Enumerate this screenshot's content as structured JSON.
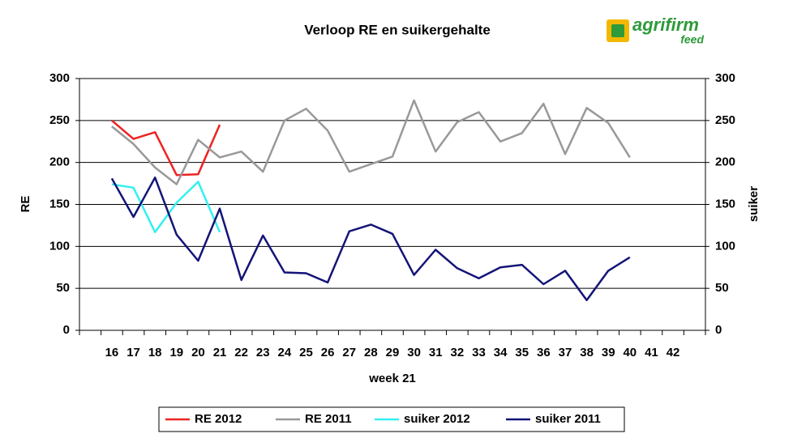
{
  "chart_data": {
    "type": "line",
    "title": "Verloop RE en suikergehalte",
    "logo": {
      "name": "agrifirm",
      "sub": "feed"
    },
    "xlabel": "week 21",
    "ylabel": "RE",
    "y2label": "suiker",
    "categories": [
      null,
      "16",
      "17",
      "18",
      "19",
      "20",
      "21",
      "22",
      "23",
      "24",
      "25",
      "26",
      "27",
      "28",
      "29",
      "30",
      "31",
      "32",
      "33",
      "34",
      "35",
      "36",
      "37",
      "38",
      "39",
      "40",
      "41",
      "42",
      null
    ],
    "series": [
      {
        "name": "RE 2012",
        "color": "#ee2222",
        "values": [
          null,
          250,
          228,
          236,
          185,
          186,
          245,
          null,
          null,
          null,
          null,
          null,
          null,
          null,
          null,
          null,
          null,
          null,
          null,
          null,
          null,
          null,
          null,
          null,
          null,
          null,
          null,
          null,
          null
        ]
      },
      {
        "name": "RE 2011",
        "color": "#999999",
        "values": [
          null,
          243,
          222,
          194,
          174,
          227,
          206,
          213,
          189,
          250,
          264,
          238,
          189,
          198,
          207,
          274,
          213,
          248,
          260,
          225,
          235,
          270,
          210,
          265,
          247,
          206,
          null,
          null,
          null
        ]
      },
      {
        "name": "suiker 2012",
        "color": "#33f0f0",
        "axis": "y2",
        "values": [
          null,
          174,
          170,
          117,
          152,
          177,
          117,
          null,
          null,
          null,
          null,
          null,
          null,
          null,
          null,
          null,
          null,
          null,
          null,
          null,
          null,
          null,
          null,
          null,
          null,
          null,
          null,
          null,
          null
        ]
      },
      {
        "name": "suiker 2011",
        "color": "#141478",
        "axis": "y2",
        "values": [
          null,
          181,
          135,
          182,
          114,
          83,
          145,
          60,
          113,
          69,
          68,
          57,
          118,
          126,
          115,
          66,
          96,
          74,
          62,
          75,
          78,
          55,
          71,
          36,
          71,
          87,
          null,
          null,
          null
        ]
      }
    ],
    "ylim": [
      0,
      300
    ],
    "yticks": [
      0,
      50,
      100,
      150,
      200,
      250,
      300
    ],
    "y2lim": [
      0,
      300
    ],
    "y2ticks": [
      0,
      50,
      100,
      150,
      200,
      250,
      300
    ],
    "grid": true,
    "legend": "bottom"
  }
}
